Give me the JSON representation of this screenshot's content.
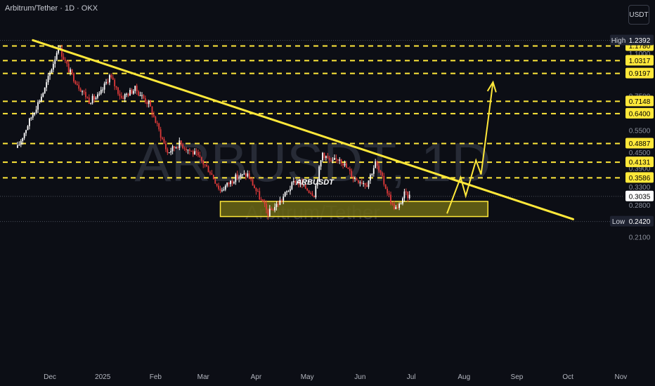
{
  "header": {
    "pair_info": "Arbitrum/Tether · 1D · OKX",
    "unit": "USDT"
  },
  "watermark": {
    "symbol": "ARBUSDT, 1D",
    "name": "Arbitrum/Tether"
  },
  "annotation": "ARBUSDT",
  "colors": {
    "bg": "#0c0e15",
    "up": "#ffffff",
    "down": "#e03a3a",
    "accent": "#ffe83a",
    "zone": "#6b6614"
  },
  "chart_data": {
    "type": "candlestick",
    "scale": "log",
    "x_ticks": [
      "Dec",
      "2025",
      "Feb",
      "Mar",
      "Apr",
      "May",
      "Jun",
      "Jul",
      "Aug",
      "Sep",
      "Oct",
      "Nov"
    ],
    "y_ticks": [
      "1.1000",
      "0.7500",
      "0.5500",
      "0.4500",
      "0.3900",
      "0.3300",
      "0.2800",
      "0.2100"
    ],
    "levels": [
      "1.1780",
      "1.0317",
      "0.9197",
      "0.7148",
      "0.6400",
      "0.4887",
      "0.4131",
      "0.3586"
    ],
    "high": {
      "label": "High",
      "value": "1.2392"
    },
    "low": {
      "label": "Low",
      "value": "0.2420"
    },
    "last": "0.3035",
    "price_path": [
      [
        "2024-11-12",
        0.47
      ],
      [
        "2024-11-20",
        0.62
      ],
      [
        "2024-11-28",
        0.8
      ],
      [
        "2024-12-04",
        1.06
      ],
      [
        "2024-12-06",
        1.18
      ],
      [
        "2024-12-12",
        0.95
      ],
      [
        "2024-12-18",
        0.82
      ],
      [
        "2024-12-24",
        0.72
      ],
      [
        "2024-12-30",
        0.75
      ],
      [
        "2025-01-05",
        0.9
      ],
      [
        "2025-01-12",
        0.74
      ],
      [
        "2025-01-20",
        0.8
      ],
      [
        "2025-01-28",
        0.7
      ],
      [
        "2025-02-03",
        0.55
      ],
      [
        "2025-02-08",
        0.45
      ],
      [
        "2025-02-15",
        0.49
      ],
      [
        "2025-02-25",
        0.44
      ],
      [
        "2025-03-05",
        0.38
      ],
      [
        "2025-03-11",
        0.32
      ],
      [
        "2025-03-20",
        0.36
      ],
      [
        "2025-03-27",
        0.37
      ],
      [
        "2025-04-02",
        0.31
      ],
      [
        "2025-04-08",
        0.26
      ],
      [
        "2025-04-15",
        0.29
      ],
      [
        "2025-04-24",
        0.35
      ],
      [
        "2025-05-05",
        0.31
      ],
      [
        "2025-05-10",
        0.45
      ],
      [
        "2025-05-15",
        0.41
      ],
      [
        "2025-05-20",
        0.43
      ],
      [
        "2025-05-28",
        0.36
      ],
      [
        "2025-06-05",
        0.34
      ],
      [
        "2025-06-10",
        0.41
      ],
      [
        "2025-06-16",
        0.33
      ],
      [
        "2025-06-20",
        0.28
      ],
      [
        "2025-06-23",
        0.27
      ],
      [
        "2025-06-27",
        0.31
      ],
      [
        "2025-06-30",
        0.3035
      ]
    ],
    "trendline": [
      [
        "2024-11-21",
        1.24
      ],
      [
        "2025-10-04",
        0.247
      ]
    ],
    "support_zone": {
      "x0": "2025-03-11",
      "x1": "2025-08-15",
      "y0": 0.253,
      "y1": 0.29
    },
    "projection": [
      [
        "2025-07-22",
        0.26
      ],
      [
        "2025-07-30",
        0.36
      ],
      [
        "2025-08-02",
        0.305
      ],
      [
        "2025-08-08",
        0.42
      ],
      [
        "2025-08-11",
        0.37
      ],
      [
        "2025-08-18",
        0.85
      ]
    ]
  }
}
